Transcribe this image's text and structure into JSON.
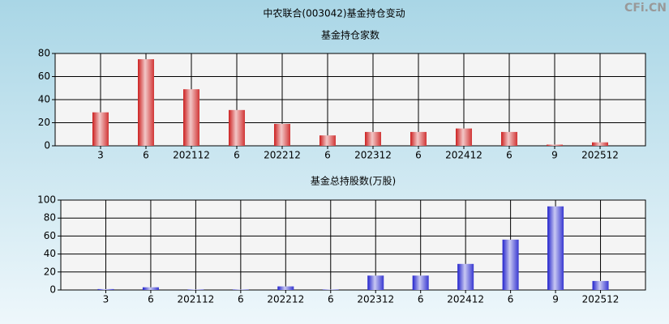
{
  "title": "中农联合(003042)基金持仓变动",
  "watermark": "CFi.CN",
  "chart_data": [
    {
      "type": "bar",
      "title": "基金持仓家数",
      "categories": [
        "3",
        "6",
        "202112",
        "6",
        "202212",
        "6",
        "202312",
        "6",
        "202412",
        "6",
        "9",
        "202512"
      ],
      "values": [
        29,
        75,
        49,
        31,
        19,
        9,
        12,
        12,
        15,
        12,
        1,
        3
      ],
      "color": "#cc1f1f",
      "ylim": [
        0,
        80
      ],
      "yticks": [
        0,
        20,
        40,
        60,
        80
      ],
      "grid": true
    },
    {
      "type": "bar",
      "title": "基金总持股数(万股)",
      "categories": [
        "3",
        "6",
        "202112",
        "6",
        "202212",
        "6",
        "202312",
        "6",
        "202412",
        "6",
        "9",
        "202512"
      ],
      "values": [
        1,
        3,
        0.5,
        0.5,
        4,
        0.5,
        16,
        16,
        29,
        56,
        93,
        10
      ],
      "color": "#2222cc",
      "ylim": [
        0,
        100
      ],
      "yticks": [
        0,
        20,
        40,
        60,
        80,
        100
      ],
      "grid": true
    }
  ]
}
